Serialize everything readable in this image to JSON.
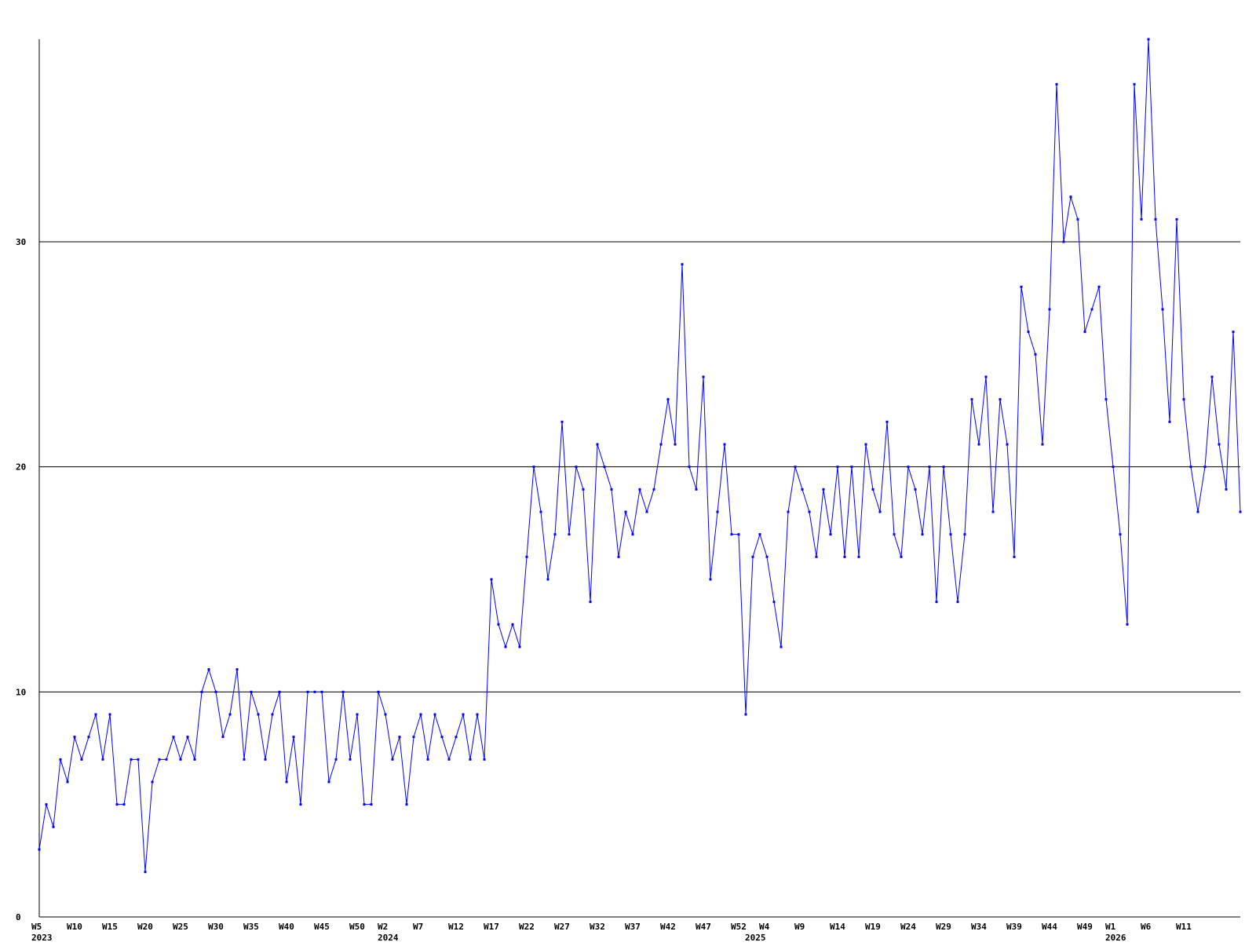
{
  "chart_data": {
    "type": "line",
    "title": "",
    "xlabel": "",
    "ylabel": "",
    "ylim": [
      0,
      39
    ],
    "y_ticks": [
      0,
      10,
      20,
      30
    ],
    "grid": "horizontal",
    "colors": {
      "line": "#0000ff",
      "axis": "#000000",
      "grid": "#000000",
      "background": "#ffffff"
    },
    "x_tick_labels": [
      {
        "index": 0,
        "label": "W5"
      },
      {
        "index": 5,
        "label": "W10"
      },
      {
        "index": 10,
        "label": "W15"
      },
      {
        "index": 15,
        "label": "W20"
      },
      {
        "index": 20,
        "label": "W25"
      },
      {
        "index": 25,
        "label": "W30"
      },
      {
        "index": 30,
        "label": "W35"
      },
      {
        "index": 35,
        "label": "W40"
      },
      {
        "index": 40,
        "label": "W45"
      },
      {
        "index": 45,
        "label": "W50"
      },
      {
        "index": 49,
        "label": "W2"
      },
      {
        "index": 54,
        "label": "W7"
      },
      {
        "index": 59,
        "label": "W12"
      },
      {
        "index": 64,
        "label": "W17"
      },
      {
        "index": 69,
        "label": "W22"
      },
      {
        "index": 74,
        "label": "W27"
      },
      {
        "index": 79,
        "label": "W32"
      },
      {
        "index": 84,
        "label": "W37"
      },
      {
        "index": 89,
        "label": "W42"
      },
      {
        "index": 94,
        "label": "W47"
      },
      {
        "index": 99,
        "label": "W52"
      },
      {
        "index": 103,
        "label": "W4"
      },
      {
        "index": 108,
        "label": "W9"
      },
      {
        "index": 113,
        "label": "W14"
      },
      {
        "index": 118,
        "label": "W19"
      },
      {
        "index": 123,
        "label": "W24"
      },
      {
        "index": 128,
        "label": "W29"
      },
      {
        "index": 133,
        "label": "W34"
      },
      {
        "index": 138,
        "label": "W39"
      },
      {
        "index": 143,
        "label": "W44"
      },
      {
        "index": 148,
        "label": "W49"
      },
      {
        "index": 152,
        "label": "W1"
      },
      {
        "index": 157,
        "label": "W6"
      },
      {
        "index": 162,
        "label": "W11"
      }
    ],
    "year_labels": [
      {
        "index": 0,
        "label": "2023"
      },
      {
        "index": 49,
        "label": "2024"
      },
      {
        "index": 101,
        "label": "2025"
      },
      {
        "index": 152,
        "label": "2026"
      }
    ],
    "series": [
      {
        "values": [
          3,
          5,
          4,
          7,
          6,
          8,
          7,
          8,
          9,
          7,
          9,
          5,
          5,
          7,
          7,
          2,
          6,
          7,
          7,
          8,
          7,
          8,
          7,
          10,
          11,
          10,
          8,
          9,
          11,
          7,
          10,
          9,
          7,
          9,
          10,
          6,
          8,
          5,
          10,
          10,
          10,
          6,
          7,
          10,
          7,
          9,
          5,
          5,
          10,
          9,
          7,
          8,
          5,
          8,
          9,
          7,
          9,
          8,
          7,
          8,
          9,
          7,
          9,
          7,
          15,
          13,
          12,
          13,
          12,
          16,
          20,
          18,
          15,
          17,
          22,
          17,
          20,
          19,
          14,
          21,
          20,
          19,
          16,
          18,
          17,
          19,
          18,
          19,
          21,
          23,
          21,
          29,
          20,
          19,
          24,
          15,
          18,
          21,
          17,
          17,
          9,
          16,
          17,
          16,
          14,
          12,
          18,
          20,
          19,
          18,
          16,
          19,
          17,
          20,
          16,
          20,
          16,
          21,
          19,
          18,
          22,
          17,
          16,
          20,
          19,
          17,
          20,
          14,
          20,
          17,
          14,
          17,
          23,
          21,
          24,
          18,
          23,
          21,
          16,
          28,
          26,
          25,
          21,
          27,
          37,
          30,
          32,
          31,
          26,
          27,
          28,
          23,
          20,
          17,
          13,
          37,
          31,
          39,
          31,
          27,
          22,
          31,
          23,
          20,
          18,
          20,
          24,
          21,
          19,
          26,
          18
        ]
      }
    ]
  }
}
